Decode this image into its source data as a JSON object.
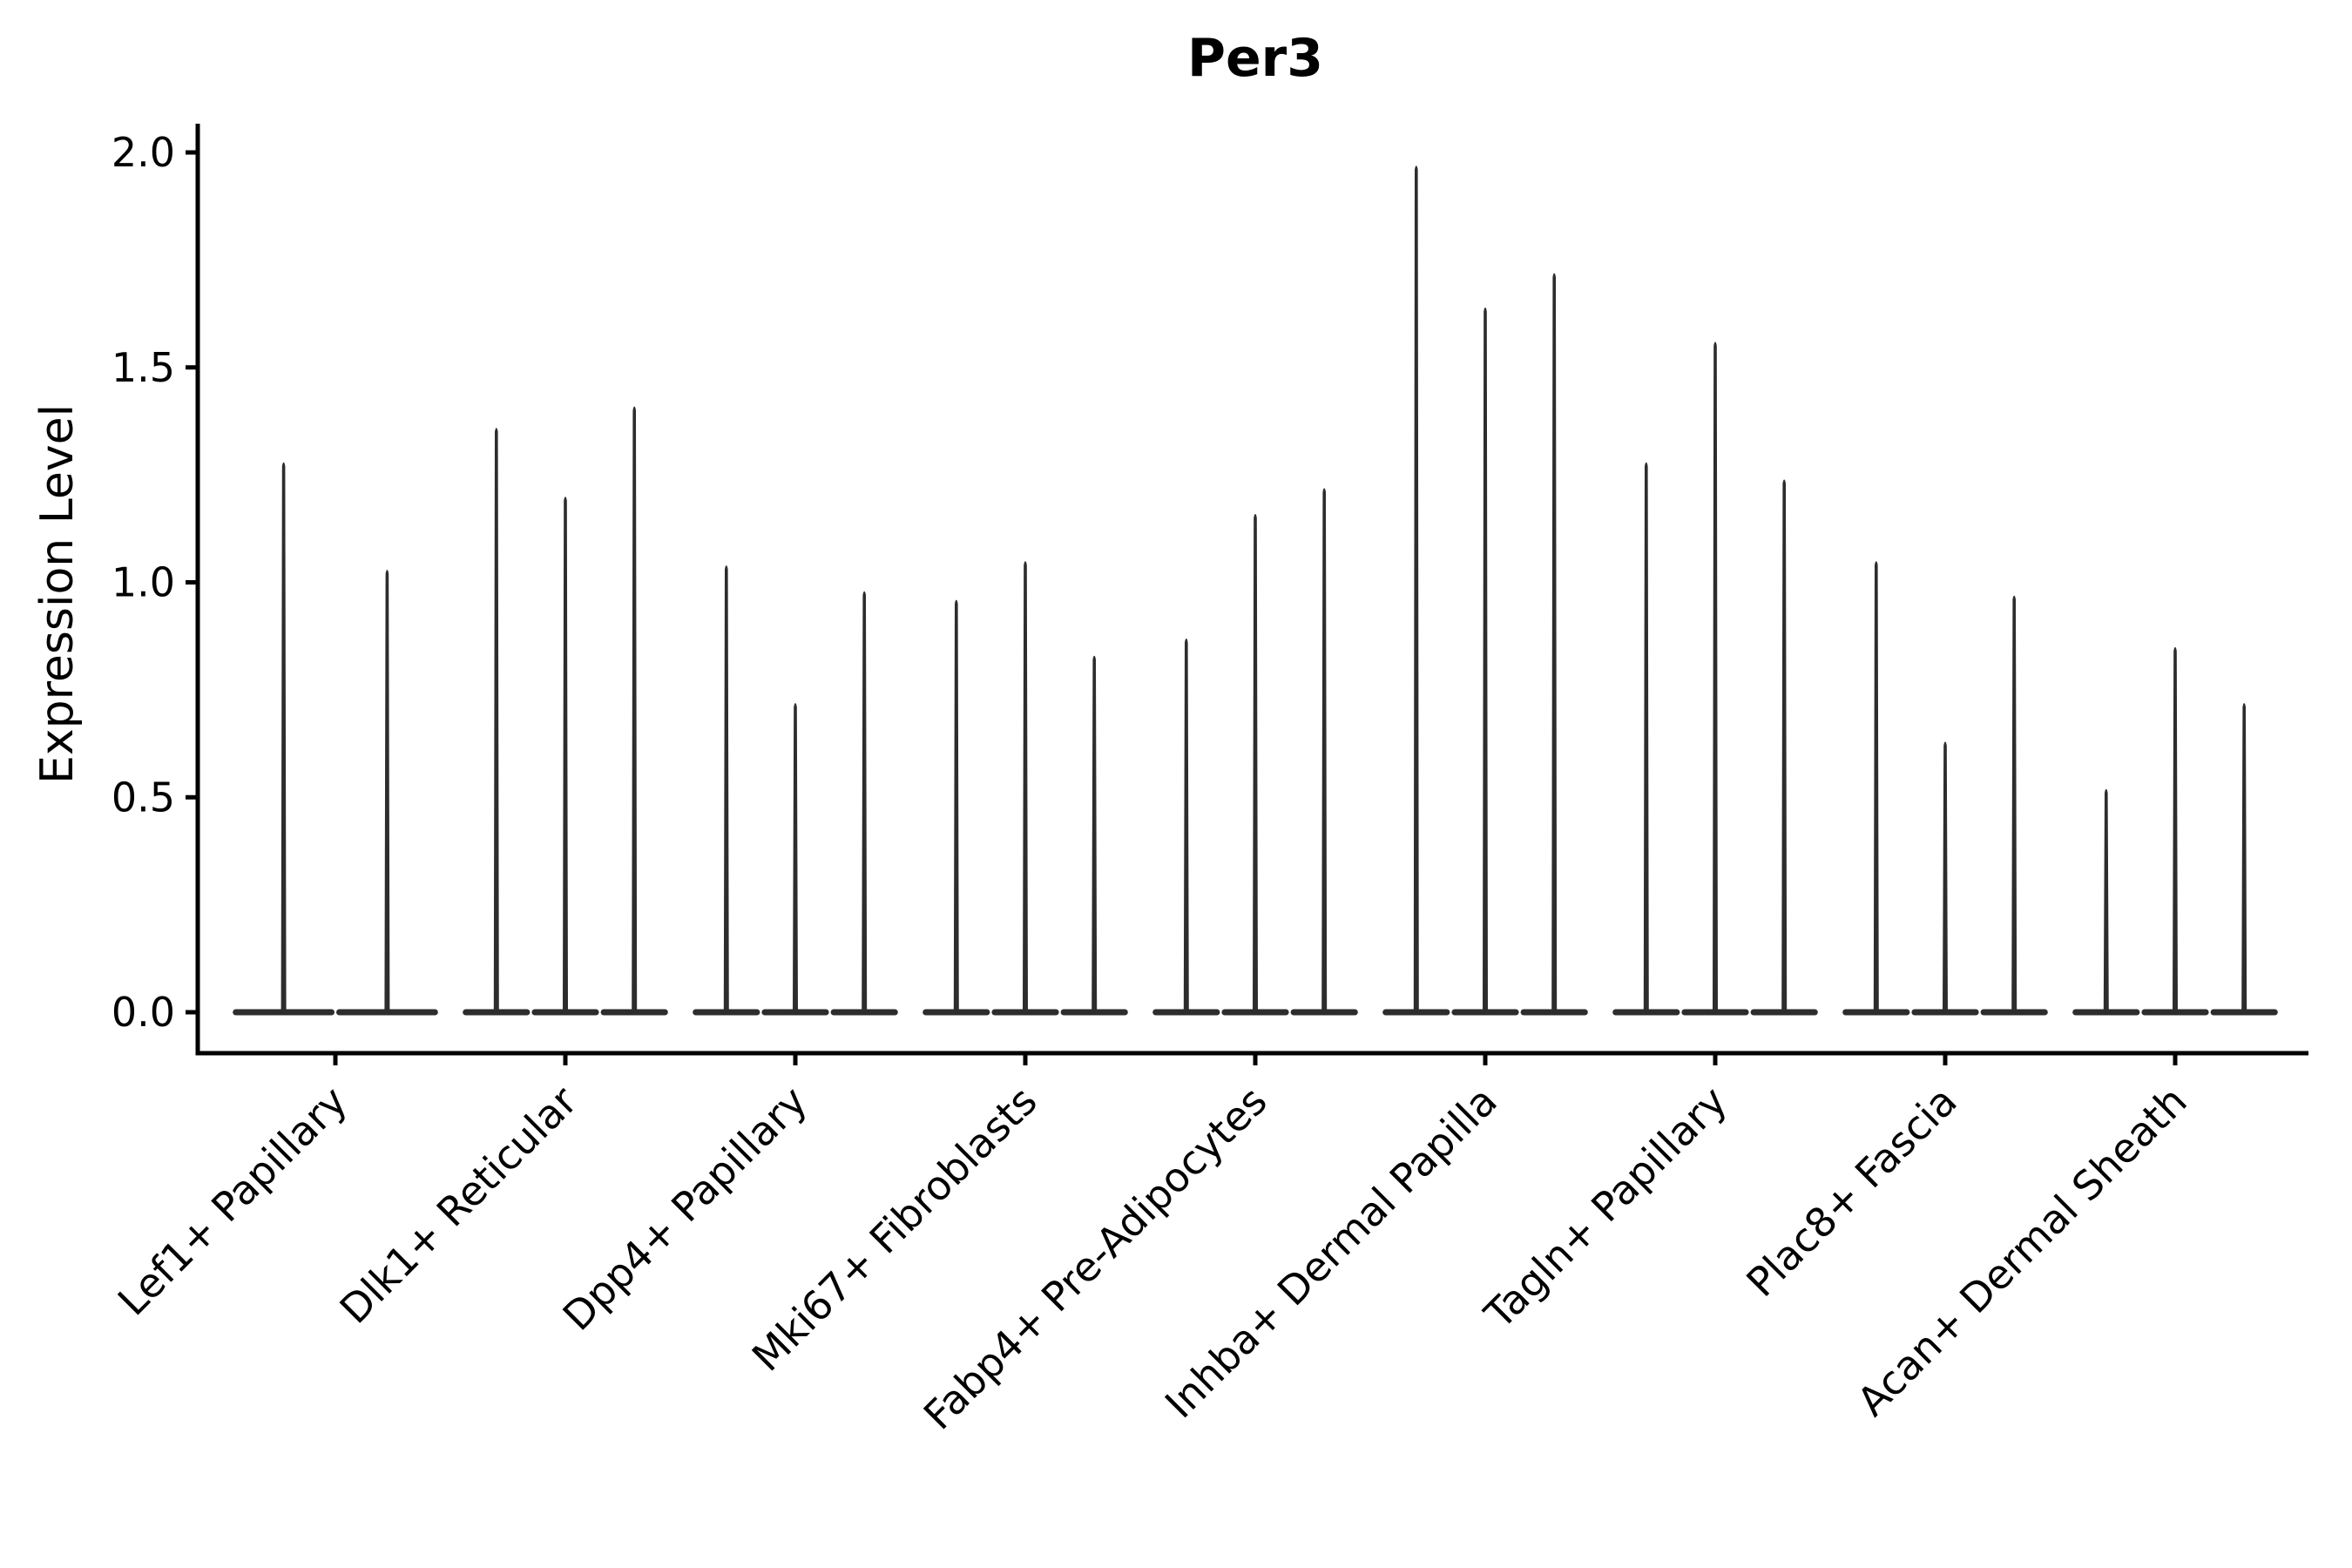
{
  "figure": {
    "background_color": "#ffffff"
  },
  "chart_data": {
    "type": "violin",
    "title": "Per3",
    "xlabel": "",
    "ylabel": "Expression Level",
    "ylim": [
      0.0,
      2.0
    ],
    "ytick_labels": [
      "0.0",
      "0.5",
      "1.0",
      "1.5",
      "2.0"
    ],
    "ytick_values": [
      0.0,
      0.5,
      1.0,
      1.5,
      2.0
    ],
    "grid": false,
    "legend_position": "none",
    "x_tick_label_rotation_deg": 45,
    "colors": {
      "violin_fill": "#2d2d2d",
      "axis": "#000000",
      "text": "#000000"
    },
    "categories": [
      {
        "label": "Lef1+ Papillary",
        "violin_maxima": [
          1.28,
          1.03
        ]
      },
      {
        "label": "Dlk1+ Reticular",
        "violin_maxima": [
          1.36,
          1.2,
          1.41
        ]
      },
      {
        "label": "Dpp4+ Papillary",
        "violin_maxima": [
          1.04,
          0.72,
          0.98
        ]
      },
      {
        "label": "Mki67+ Fibroblasts",
        "violin_maxima": [
          0.96,
          1.05,
          0.83
        ]
      },
      {
        "label": "Fabp4+ Pre-Adipocytes",
        "violin_maxima": [
          0.87,
          1.16,
          1.22
        ]
      },
      {
        "label": "Inhba+ Dermal Papilla",
        "violin_maxima": [
          1.97,
          1.64,
          1.72
        ]
      },
      {
        "label": "Tagln+ Papillary",
        "violin_maxima": [
          1.28,
          1.56,
          1.24
        ]
      },
      {
        "label": "Plac8+ Fascia",
        "violin_maxima": [
          1.05,
          0.63,
          0.97
        ]
      },
      {
        "label": "Acan+ Dermal Sheath",
        "violin_maxima": [
          0.52,
          0.85,
          0.72
        ]
      }
    ],
    "violin_shape_note": "sparse expression: wide flat base at 0 with thin density spike up to each maximum"
  }
}
